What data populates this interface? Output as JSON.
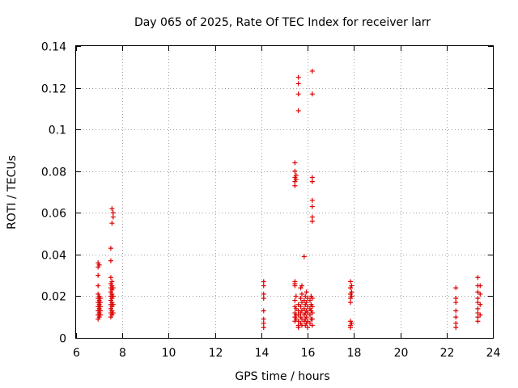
{
  "chart_data": {
    "type": "scatter",
    "title": "Day 065 of 2025, Rate Of TEC Index for receiver larr",
    "xlabel": "GPS time / hours",
    "ylabel": "ROTI / TECUs",
    "xlim": [
      6,
      24
    ],
    "ylim": [
      0,
      0.14
    ],
    "xticks": [
      6,
      8,
      10,
      12,
      14,
      16,
      18,
      20,
      22,
      24
    ],
    "yticks": [
      0,
      0.02,
      0.04,
      0.06,
      0.08,
      0.1,
      0.12,
      0.14
    ],
    "ytick_labels": [
      "0",
      "0.02",
      "0.04",
      "0.06",
      "0.08",
      "0.1",
      "0.12",
      "0.14"
    ],
    "grid": true,
    "marker": "plus",
    "color": "#dd0000",
    "series": [
      {
        "points": [
          [
            6.95,
            0.036
          ],
          [
            6.95,
            0.034
          ],
          [
            6.95,
            0.03
          ],
          [
            6.95,
            0.025
          ],
          [
            6.95,
            0.021
          ],
          [
            6.95,
            0.019
          ],
          [
            6.95,
            0.017
          ],
          [
            6.95,
            0.015
          ],
          [
            6.95,
            0.013
          ],
          [
            6.95,
            0.011
          ],
          [
            6.95,
            0.009
          ],
          [
            7.0,
            0.035
          ],
          [
            7.0,
            0.02
          ],
          [
            7.0,
            0.018
          ],
          [
            7.0,
            0.016
          ],
          [
            7.0,
            0.014
          ],
          [
            7.0,
            0.012
          ],
          [
            7.0,
            0.01
          ],
          [
            7.05,
            0.019
          ],
          [
            7.05,
            0.017
          ],
          [
            7.05,
            0.015
          ],
          [
            7.05,
            0.013
          ],
          [
            7.05,
            0.011
          ],
          [
            7.5,
            0.043
          ],
          [
            7.5,
            0.037
          ],
          [
            7.5,
            0.029
          ],
          [
            7.5,
            0.026
          ],
          [
            7.5,
            0.024
          ],
          [
            7.5,
            0.022
          ],
          [
            7.5,
            0.02
          ],
          [
            7.5,
            0.018
          ],
          [
            7.5,
            0.016
          ],
          [
            7.5,
            0.014
          ],
          [
            7.5,
            0.012
          ],
          [
            7.5,
            0.01
          ],
          [
            7.55,
            0.062
          ],
          [
            7.55,
            0.055
          ],
          [
            7.55,
            0.027
          ],
          [
            7.55,
            0.025
          ],
          [
            7.55,
            0.023
          ],
          [
            7.55,
            0.021
          ],
          [
            7.55,
            0.019
          ],
          [
            7.55,
            0.017
          ],
          [
            7.55,
            0.015
          ],
          [
            7.55,
            0.013
          ],
          [
            7.55,
            0.011
          ],
          [
            7.6,
            0.06
          ],
          [
            7.6,
            0.058
          ],
          [
            7.6,
            0.024
          ],
          [
            7.6,
            0.02
          ],
          [
            7.6,
            0.016
          ],
          [
            7.6,
            0.012
          ],
          [
            14.1,
            0.027
          ],
          [
            14.1,
            0.025
          ],
          [
            14.1,
            0.021
          ],
          [
            14.1,
            0.019
          ],
          [
            14.1,
            0.013
          ],
          [
            14.1,
            0.009
          ],
          [
            14.1,
            0.007
          ],
          [
            14.1,
            0.005
          ],
          [
            15.45,
            0.084
          ],
          [
            15.45,
            0.08
          ],
          [
            15.45,
            0.077
          ],
          [
            15.45,
            0.075
          ],
          [
            15.45,
            0.073
          ],
          [
            15.45,
            0.027
          ],
          [
            15.45,
            0.026
          ],
          [
            15.45,
            0.025
          ],
          [
            15.45,
            0.018
          ],
          [
            15.45,
            0.015
          ],
          [
            15.45,
            0.012
          ],
          [
            15.45,
            0.01
          ],
          [
            15.45,
            0.008
          ],
          [
            15.5,
            0.078
          ],
          [
            15.5,
            0.076
          ],
          [
            15.5,
            0.02
          ],
          [
            15.5,
            0.014
          ],
          [
            15.5,
            0.011
          ],
          [
            15.5,
            0.009
          ],
          [
            15.6,
            0.125
          ],
          [
            15.6,
            0.122
          ],
          [
            15.6,
            0.117
          ],
          [
            15.6,
            0.109
          ],
          [
            15.6,
            0.016
          ],
          [
            15.6,
            0.013
          ],
          [
            15.6,
            0.011
          ],
          [
            15.6,
            0.008
          ],
          [
            15.6,
            0.006
          ],
          [
            15.6,
            0.005
          ],
          [
            15.7,
            0.024
          ],
          [
            15.7,
            0.019
          ],
          [
            15.7,
            0.015
          ],
          [
            15.7,
            0.012
          ],
          [
            15.7,
            0.01
          ],
          [
            15.7,
            0.007
          ],
          [
            15.75,
            0.025
          ],
          [
            15.75,
            0.021
          ],
          [
            15.75,
            0.017
          ],
          [
            15.75,
            0.013
          ],
          [
            15.75,
            0.009
          ],
          [
            15.75,
            0.006
          ],
          [
            15.85,
            0.039
          ],
          [
            15.85,
            0.018
          ],
          [
            15.85,
            0.014
          ],
          [
            15.85,
            0.011
          ],
          [
            15.85,
            0.008
          ],
          [
            15.9,
            0.02
          ],
          [
            15.9,
            0.016
          ],
          [
            15.9,
            0.012
          ],
          [
            15.9,
            0.009
          ],
          [
            15.9,
            0.006
          ],
          [
            15.95,
            0.022
          ],
          [
            15.95,
            0.017
          ],
          [
            15.95,
            0.013
          ],
          [
            15.95,
            0.01
          ],
          [
            15.95,
            0.007
          ],
          [
            16.0,
            0.019
          ],
          [
            16.0,
            0.015
          ],
          [
            16.0,
            0.012
          ],
          [
            16.0,
            0.008
          ],
          [
            16.0,
            0.005
          ],
          [
            16.1,
            0.018
          ],
          [
            16.1,
            0.014
          ],
          [
            16.1,
            0.011
          ],
          [
            16.1,
            0.007
          ],
          [
            16.15,
            0.02
          ],
          [
            16.15,
            0.016
          ],
          [
            16.15,
            0.013
          ],
          [
            16.15,
            0.009
          ],
          [
            16.2,
            0.128
          ],
          [
            16.2,
            0.117
          ],
          [
            16.2,
            0.077
          ],
          [
            16.2,
            0.075
          ],
          [
            16.2,
            0.066
          ],
          [
            16.2,
            0.063
          ],
          [
            16.2,
            0.058
          ],
          [
            16.2,
            0.056
          ],
          [
            16.2,
            0.019
          ],
          [
            16.2,
            0.015
          ],
          [
            16.2,
            0.012
          ],
          [
            16.2,
            0.009
          ],
          [
            16.2,
            0.006
          ],
          [
            17.85,
            0.027
          ],
          [
            17.85,
            0.024
          ],
          [
            17.85,
            0.021
          ],
          [
            17.85,
            0.019
          ],
          [
            17.85,
            0.017
          ],
          [
            17.85,
            0.008
          ],
          [
            17.85,
            0.006
          ],
          [
            17.85,
            0.005
          ],
          [
            17.9,
            0.025
          ],
          [
            17.9,
            0.022
          ],
          [
            17.9,
            0.02
          ],
          [
            17.9,
            0.007
          ],
          [
            22.4,
            0.024
          ],
          [
            22.4,
            0.019
          ],
          [
            22.4,
            0.017
          ],
          [
            22.4,
            0.013
          ],
          [
            22.4,
            0.01
          ],
          [
            22.4,
            0.007
          ],
          [
            22.4,
            0.005
          ],
          [
            23.35,
            0.029
          ],
          [
            23.35,
            0.025
          ],
          [
            23.35,
            0.022
          ],
          [
            23.35,
            0.019
          ],
          [
            23.35,
            0.017
          ],
          [
            23.35,
            0.014
          ],
          [
            23.35,
            0.012
          ],
          [
            23.35,
            0.01
          ],
          [
            23.35,
            0.008
          ],
          [
            23.45,
            0.025
          ],
          [
            23.45,
            0.021
          ],
          [
            23.45,
            0.016
          ],
          [
            23.45,
            0.011
          ]
        ]
      }
    ]
  }
}
